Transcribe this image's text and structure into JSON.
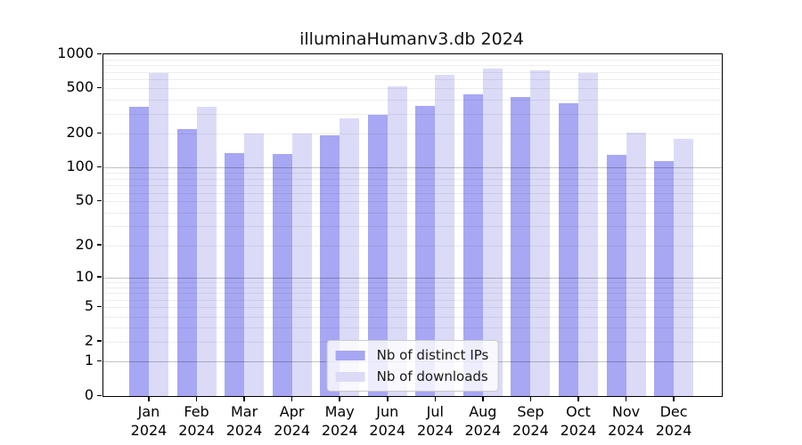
{
  "figure": {
    "title": "illuminaHumanv3.db 2024"
  },
  "chart_data": {
    "type": "bar",
    "title": "illuminaHumanv3.db 2024",
    "categories": [
      "Jan",
      "Feb",
      "Mar",
      "Apr",
      "May",
      "Jun",
      "Jul",
      "Aug",
      "Sep",
      "Oct",
      "Nov",
      "Dec"
    ],
    "category_year": "2024",
    "series": [
      {
        "name": "Nb of distinct IPs",
        "color": "#a7a7f3",
        "values": [
          345,
          220,
          136,
          132,
          195,
          292,
          352,
          448,
          424,
          372,
          129,
          115
        ]
      },
      {
        "name": "Nb of downloads",
        "color": "#dbdbf8",
        "values": [
          680,
          345,
          201,
          201,
          272,
          520,
          655,
          748,
          723,
          683,
          203,
          180
        ]
      }
    ],
    "y_axis": {
      "scale": "log10(1+y)",
      "ylim": [
        0,
        1000
      ],
      "ticks": [
        1000,
        500,
        200,
        100,
        50,
        20,
        10,
        5,
        2,
        1,
        0
      ],
      "major_gridlines": [
        1,
        10,
        100
      ],
      "minor_gridlines": [
        2,
        3,
        4,
        5,
        6,
        7,
        8,
        9,
        20,
        30,
        40,
        50,
        60,
        70,
        80,
        90,
        200,
        300,
        400,
        500,
        600,
        700,
        800,
        900
      ]
    },
    "legend": {
      "position": "lower center"
    },
    "grid": "horizontal"
  }
}
